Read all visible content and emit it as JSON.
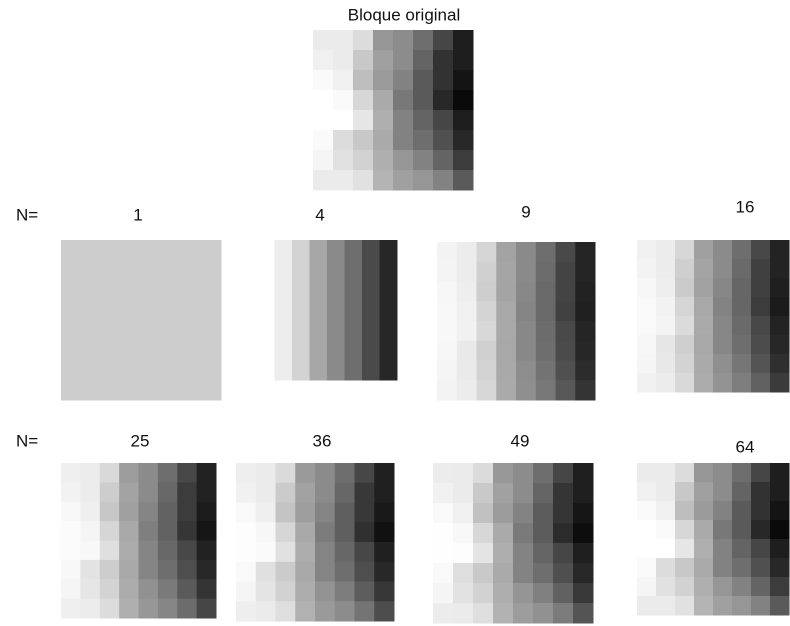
{
  "title": "Bloque original",
  "rows": [
    {
      "prefix": "N=",
      "labels": [
        "1",
        "4",
        "9",
        "16"
      ]
    },
    {
      "prefix": "N=",
      "labels": [
        "25",
        "36",
        "49",
        "64"
      ]
    }
  ]
}
